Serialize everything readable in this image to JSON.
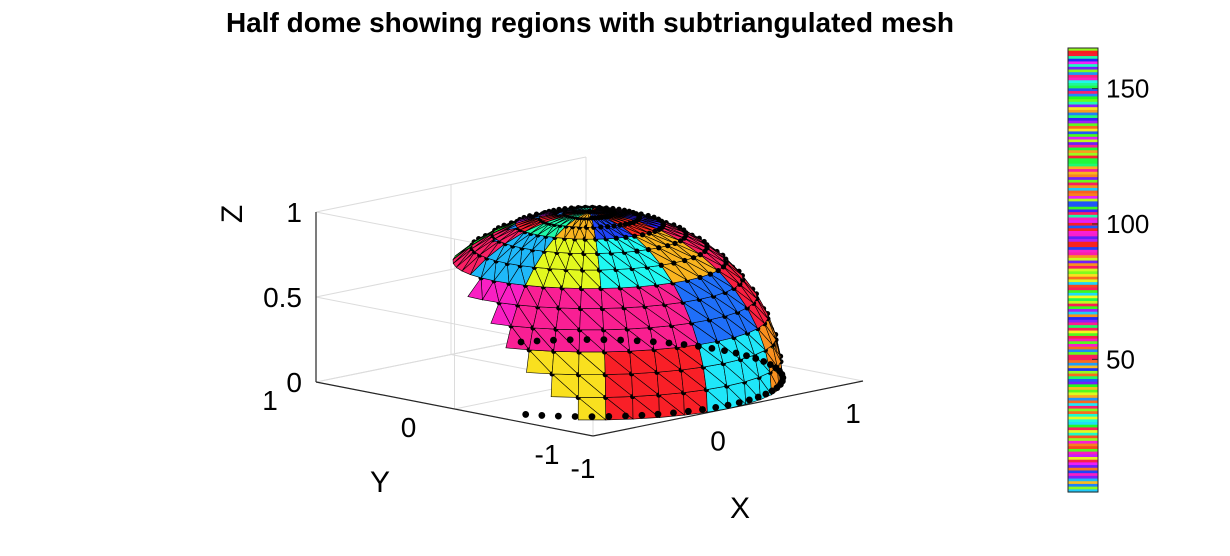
{
  "chart_data": {
    "type": "surface-3d",
    "title": "Half dome showing regions with subtriangulated mesh",
    "xlabel": "X",
    "ylabel": "Y",
    "zlabel": "Z",
    "x_ticks": [
      "-1",
      "0",
      "1"
    ],
    "y_ticks": [
      "-1",
      "0",
      "1"
    ],
    "z_ticks": [
      "0",
      "0.5",
      "1"
    ],
    "xlim": [
      -1,
      1
    ],
    "ylim": [
      -1,
      1
    ],
    "zlim": [
      0,
      1
    ],
    "grid": true,
    "colorbar": {
      "ticks": [
        "50",
        "100",
        "150"
      ],
      "tick_values": [
        50,
        100,
        150
      ],
      "range": [
        1,
        165
      ],
      "colormap": "hsv-shuffled",
      "location": "right"
    },
    "surface": {
      "shape": "hemisphere",
      "radius": 1,
      "region_count": 165,
      "mesh": "subtriangulated",
      "vertex_marker": "black-dot"
    }
  }
}
